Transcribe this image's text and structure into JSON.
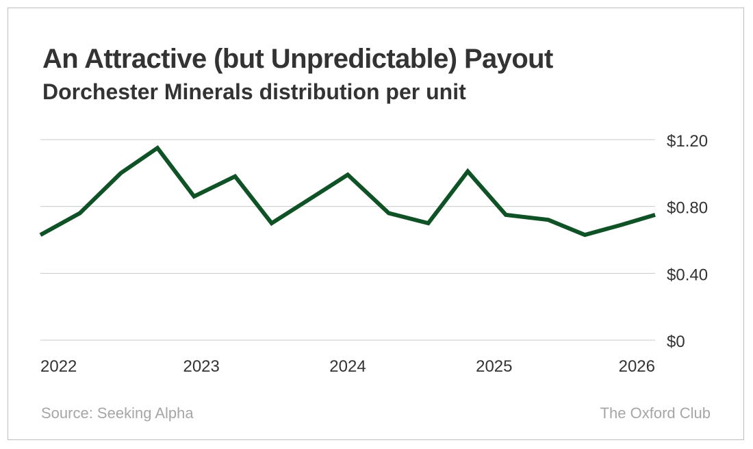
{
  "colors": {
    "line": "#0f5226",
    "grid": "#c8c8c8",
    "text": "#333333",
    "muted": "#a6a6a6"
  },
  "footer": {
    "source": "Source: Seeking Alpha",
    "brand": "The Oxford Club"
  },
  "chart_data": {
    "type": "line",
    "title": "An Attractive (but Unpredictable) Payout",
    "subtitle": "Dorchester Minerals distribution per unit",
    "xlabel": "",
    "ylabel": "",
    "xlim": [
      2021.9,
      2026.1
    ],
    "ylim": [
      0,
      1.2
    ],
    "y_ticks": [
      {
        "value": 0,
        "label": "$0"
      },
      {
        "value": 0.4,
        "label": "$0.40"
      },
      {
        "value": 0.8,
        "label": "$0.80"
      },
      {
        "value": 1.2,
        "label": "$1.20"
      }
    ],
    "x_ticks": [
      {
        "value": 2022,
        "label": "2022"
      },
      {
        "value": 2023,
        "label": "2023"
      },
      {
        "value": 2024,
        "label": "2024"
      },
      {
        "value": 2025,
        "label": "2025"
      },
      {
        "value": 2026,
        "label": "2026"
      }
    ],
    "grid": true,
    "series": [
      {
        "name": "Distribution per unit",
        "points": [
          {
            "x": 2021.9,
            "y": 0.63
          },
          {
            "x": 2022.17,
            "y": 0.76
          },
          {
            "x": 2022.45,
            "y": 1.0
          },
          {
            "x": 2022.7,
            "y": 1.15
          },
          {
            "x": 2022.95,
            "y": 0.86
          },
          {
            "x": 2023.23,
            "y": 0.98
          },
          {
            "x": 2023.48,
            "y": 0.7
          },
          {
            "x": 2023.75,
            "y": 0.85
          },
          {
            "x": 2024.0,
            "y": 0.99
          },
          {
            "x": 2024.28,
            "y": 0.76
          },
          {
            "x": 2024.55,
            "y": 0.7
          },
          {
            "x": 2024.82,
            "y": 1.01
          },
          {
            "x": 2025.08,
            "y": 0.75
          },
          {
            "x": 2025.37,
            "y": 0.72
          },
          {
            "x": 2025.62,
            "y": 0.63
          },
          {
            "x": 2025.87,
            "y": 0.69
          },
          {
            "x": 2026.1,
            "y": 0.75
          }
        ]
      }
    ]
  }
}
